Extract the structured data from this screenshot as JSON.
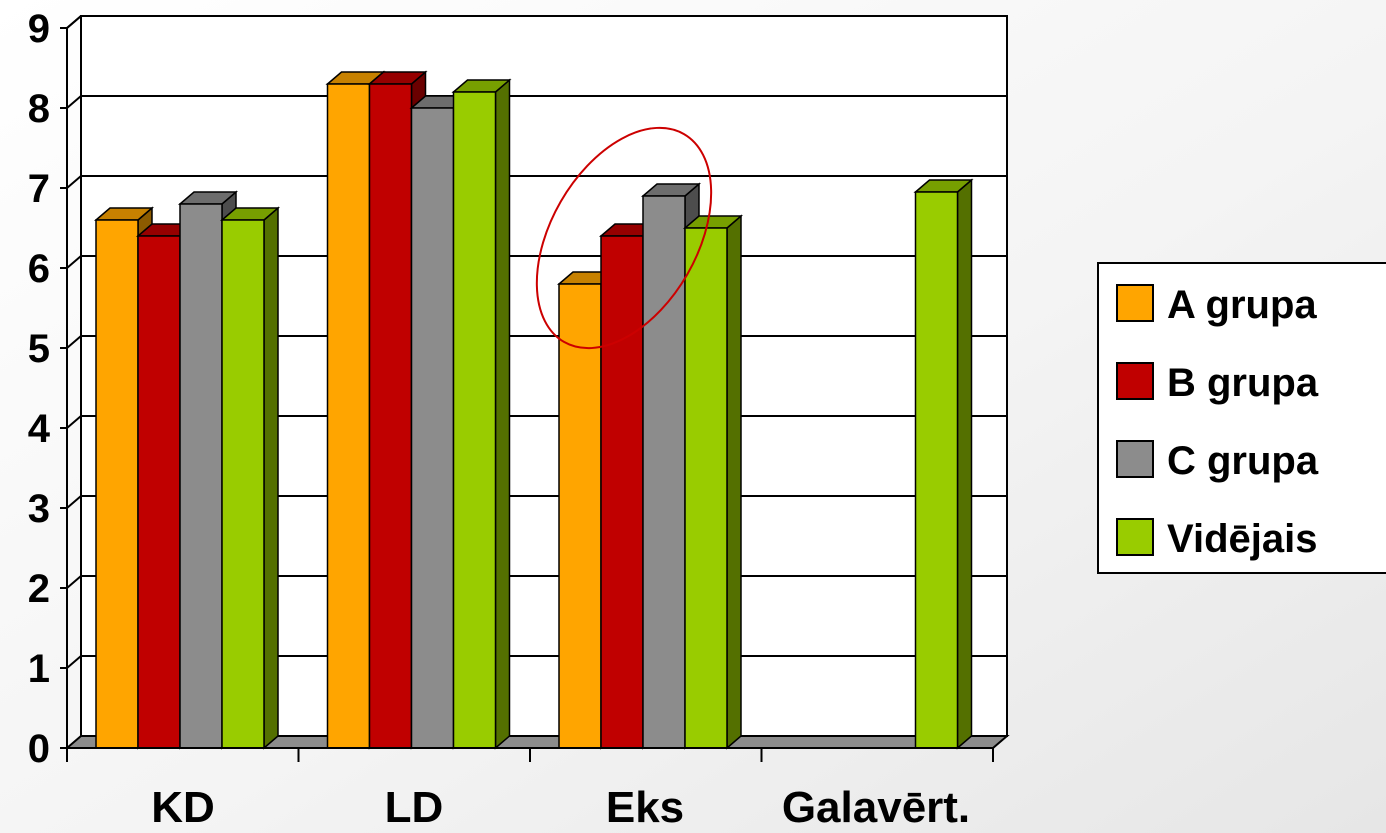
{
  "chart_data": {
    "type": "bar",
    "style": "3d-clustered-column",
    "categories": [
      "KD",
      "LD",
      "Eks",
      "Galavērt."
    ],
    "series": [
      {
        "name": "A grupa",
        "color": "#FFA500",
        "values": [
          6.6,
          8.3,
          5.8,
          null
        ]
      },
      {
        "name": "B grupa",
        "color": "#C00000",
        "values": [
          6.4,
          8.3,
          6.4,
          null
        ]
      },
      {
        "name": "C grupa",
        "color": "#8C8C8C",
        "values": [
          6.8,
          8.0,
          6.9,
          null
        ]
      },
      {
        "name": "Vidējais",
        "color": "#99CC00",
        "values": [
          6.6,
          8.2,
          6.5,
          6.95
        ]
      }
    ],
    "ylim": [
      0,
      9
    ],
    "yticks": [
      "0",
      "1",
      "2",
      "3",
      "4",
      "5",
      "6",
      "7",
      "8",
      "9"
    ],
    "grid": true,
    "legend_position": "right",
    "annotation": "red ellipse around Eks group"
  }
}
